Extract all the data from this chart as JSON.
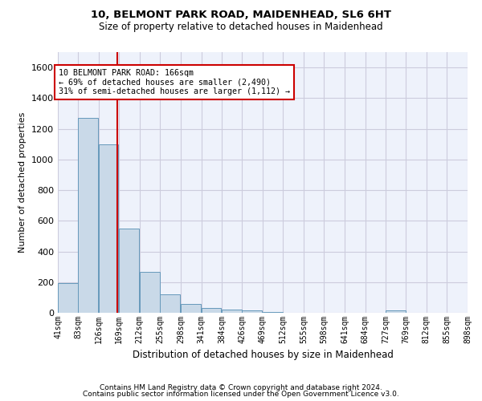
{
  "title1": "10, BELMONT PARK ROAD, MAIDENHEAD, SL6 6HT",
  "title2": "Size of property relative to detached houses in Maidenhead",
  "xlabel": "Distribution of detached houses by size in Maidenhead",
  "ylabel": "Number of detached properties",
  "footer1": "Contains HM Land Registry data © Crown copyright and database right 2024.",
  "footer2": "Contains public sector information licensed under the Open Government Licence v3.0.",
  "annotation_line1": "10 BELMONT PARK ROAD: 166sqm",
  "annotation_line2": "← 69% of detached houses are smaller (2,490)",
  "annotation_line3": "31% of semi-detached houses are larger (1,112) →",
  "bar_color": "#c9d9e8",
  "bar_edge_color": "#6699bb",
  "ref_line_color": "#cc0000",
  "ref_line_x": 166,
  "bin_edges": [
    41,
    83,
    126,
    169,
    212,
    255,
    298,
    341,
    384,
    426,
    469,
    512,
    555,
    598,
    641,
    684,
    727,
    769,
    812,
    855,
    898
  ],
  "bin_labels": [
    "41sqm",
    "83sqm",
    "126sqm",
    "169sqm",
    "212sqm",
    "255sqm",
    "298sqm",
    "341sqm",
    "384sqm",
    "426sqm",
    "469sqm",
    "512sqm",
    "555sqm",
    "598sqm",
    "641sqm",
    "684sqm",
    "727sqm",
    "769sqm",
    "812sqm",
    "855sqm",
    "898sqm"
  ],
  "bar_heights": [
    195,
    1270,
    1100,
    550,
    265,
    120,
    60,
    30,
    20,
    15,
    5,
    0,
    0,
    0,
    0,
    0,
    15,
    0,
    0,
    0,
    0
  ],
  "ylim": [
    0,
    1700
  ],
  "yticks": [
    0,
    200,
    400,
    600,
    800,
    1000,
    1200,
    1400,
    1600
  ],
  "grid_color": "#ccccdd",
  "bg_color": "#eef2fb"
}
